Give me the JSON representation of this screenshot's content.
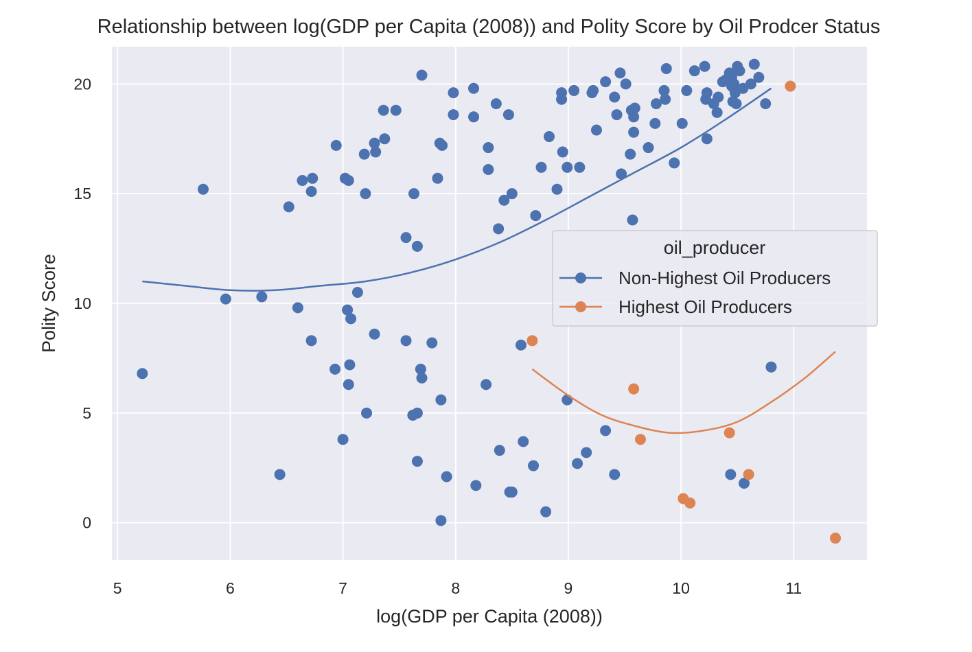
{
  "chart_data": {
    "type": "scatter",
    "title": "Relationship between log(GDP per Capita (2008)) and Polity Score by Oil Prodcer Status",
    "xlabel": "log(GDP per Capita (2008))",
    "ylabel": "Polity Score",
    "xlim": [
      4.95,
      11.65
    ],
    "ylim": [
      -1.7,
      21.7
    ],
    "xticks": [
      "5",
      "6",
      "7",
      "8",
      "9",
      "10",
      "11"
    ],
    "yticks": [
      "0",
      "5",
      "10",
      "15",
      "20"
    ],
    "grid": true,
    "legend": {
      "title": "oil_producer",
      "placement": "center-right"
    },
    "series": [
      {
        "name": "Non-Highest Oil Producers",
        "color": "#4c72b0",
        "fit_x": [
          5.22,
          5.6,
          6.0,
          6.4,
          6.8,
          7.2,
          7.6,
          8.0,
          8.4,
          8.8,
          9.2,
          9.6,
          10.0,
          10.4,
          10.8
        ],
        "fit_y": [
          11.0,
          10.8,
          10.6,
          10.6,
          10.8,
          11.0,
          11.4,
          12.0,
          12.8,
          13.8,
          14.9,
          16.0,
          17.1,
          18.4,
          19.8
        ],
        "points": [
          [
            5.22,
            6.8
          ],
          [
            5.76,
            15.2
          ],
          [
            5.96,
            10.2
          ],
          [
            6.28,
            10.3
          ],
          [
            6.44,
            2.2
          ],
          [
            6.52,
            14.4
          ],
          [
            6.6,
            9.8
          ],
          [
            6.64,
            15.6
          ],
          [
            6.72,
            15.1
          ],
          [
            6.73,
            15.7
          ],
          [
            6.72,
            8.3
          ],
          [
            6.94,
            17.2
          ],
          [
            6.93,
            7.0
          ],
          [
            7.0,
            3.8
          ],
          [
            7.02,
            15.7
          ],
          [
            7.05,
            15.6
          ],
          [
            7.04,
            9.7
          ],
          [
            7.07,
            9.3
          ],
          [
            7.06,
            7.2
          ],
          [
            7.05,
            6.3
          ],
          [
            7.13,
            10.5
          ],
          [
            7.19,
            16.8
          ],
          [
            7.2,
            15.0
          ],
          [
            7.21,
            5.0
          ],
          [
            7.28,
            17.3
          ],
          [
            7.29,
            16.9
          ],
          [
            7.28,
            8.6
          ],
          [
            7.37,
            17.5
          ],
          [
            7.36,
            18.8
          ],
          [
            7.47,
            18.8
          ],
          [
            7.56,
            13.0
          ],
          [
            7.56,
            8.3
          ],
          [
            7.63,
            15.0
          ],
          [
            7.62,
            4.9
          ],
          [
            7.66,
            12.6
          ],
          [
            7.66,
            5.0
          ],
          [
            7.66,
            2.8
          ],
          [
            7.69,
            7.0
          ],
          [
            7.7,
            6.6
          ],
          [
            7.7,
            20.4
          ],
          [
            7.79,
            8.2
          ],
          [
            7.84,
            15.7
          ],
          [
            7.86,
            17.3
          ],
          [
            7.88,
            17.2
          ],
          [
            7.87,
            5.6
          ],
          [
            7.87,
            0.1
          ],
          [
            7.92,
            2.1
          ],
          [
            7.98,
            19.6
          ],
          [
            7.98,
            18.6
          ],
          [
            8.16,
            19.8
          ],
          [
            8.16,
            18.5
          ],
          [
            8.18,
            1.7
          ],
          [
            8.29,
            17.1
          ],
          [
            8.29,
            16.1
          ],
          [
            8.27,
            6.3
          ],
          [
            8.36,
            19.1
          ],
          [
            8.38,
            13.4
          ],
          [
            8.39,
            3.3
          ],
          [
            8.43,
            14.7
          ],
          [
            8.47,
            18.6
          ],
          [
            8.48,
            1.4
          ],
          [
            8.5,
            1.4
          ],
          [
            8.5,
            15.0
          ],
          [
            8.58,
            8.1
          ],
          [
            8.6,
            3.7
          ],
          [
            8.69,
            2.6
          ],
          [
            8.71,
            14.0
          ],
          [
            8.76,
            16.2
          ],
          [
            8.8,
            0.5
          ],
          [
            8.83,
            17.6
          ],
          [
            8.9,
            15.2
          ],
          [
            8.94,
            19.6
          ],
          [
            8.94,
            19.3
          ],
          [
            8.95,
            16.9
          ],
          [
            8.99,
            16.2
          ],
          [
            8.99,
            5.6
          ],
          [
            9.05,
            19.7
          ],
          [
            9.08,
            2.7
          ],
          [
            9.1,
            16.2
          ],
          [
            9.16,
            3.2
          ],
          [
            9.21,
            19.6
          ],
          [
            9.22,
            19.7
          ],
          [
            9.25,
            17.9
          ],
          [
            9.33,
            20.1
          ],
          [
            9.33,
            4.2
          ],
          [
            9.41,
            19.4
          ],
          [
            9.43,
            18.6
          ],
          [
            9.41,
            2.2
          ],
          [
            9.46,
            20.5
          ],
          [
            9.47,
            15.9
          ],
          [
            9.51,
            20.0
          ],
          [
            9.55,
            16.8
          ],
          [
            9.56,
            18.8
          ],
          [
            9.58,
            18.5
          ],
          [
            9.58,
            17.8
          ],
          [
            9.59,
            18.9
          ],
          [
            9.57,
            13.8
          ],
          [
            9.71,
            17.1
          ],
          [
            9.77,
            18.2
          ],
          [
            9.78,
            19.1
          ],
          [
            9.85,
            19.7
          ],
          [
            9.86,
            19.3
          ],
          [
            9.87,
            20.7
          ],
          [
            9.94,
            16.4
          ],
          [
            10.01,
            18.2
          ],
          [
            10.05,
            19.7
          ],
          [
            10.12,
            20.6
          ],
          [
            10.21,
            20.8
          ],
          [
            10.22,
            19.3
          ],
          [
            10.23,
            19.6
          ],
          [
            10.23,
            17.5
          ],
          [
            10.29,
            19.1
          ],
          [
            10.33,
            19.4
          ],
          [
            10.32,
            18.7
          ],
          [
            10.37,
            20.1
          ],
          [
            10.4,
            20.2
          ],
          [
            10.43,
            20.5
          ],
          [
            10.45,
            20.3
          ],
          [
            10.45,
            19.9
          ],
          [
            10.46,
            19.2
          ],
          [
            10.47,
            20.0
          ],
          [
            10.49,
            19.1
          ],
          [
            10.48,
            19.6
          ],
          [
            10.5,
            20.8
          ],
          [
            10.52,
            20.6
          ],
          [
            10.55,
            19.8
          ],
          [
            10.62,
            20.0
          ],
          [
            10.65,
            20.9
          ],
          [
            10.69,
            20.3
          ],
          [
            10.75,
            19.1
          ],
          [
            10.44,
            2.2
          ],
          [
            10.56,
            1.8
          ],
          [
            10.8,
            7.1
          ]
        ]
      },
      {
        "name": "Highest Oil Producers",
        "color": "#dd8452",
        "fit_x": [
          8.68,
          9.0,
          9.3,
          9.6,
          9.9,
          10.2,
          10.5,
          10.8,
          11.1,
          11.37
        ],
        "fit_y": [
          7.0,
          5.8,
          4.9,
          4.4,
          4.1,
          4.2,
          4.6,
          5.5,
          6.6,
          7.8
        ],
        "points": [
          [
            8.68,
            8.3
          ],
          [
            9.58,
            6.1
          ],
          [
            9.64,
            3.8
          ],
          [
            10.02,
            1.1
          ],
          [
            10.08,
            0.9
          ],
          [
            10.43,
            4.1
          ],
          [
            10.6,
            2.2
          ],
          [
            10.97,
            19.9
          ],
          [
            11.37,
            -0.7
          ]
        ]
      }
    ]
  }
}
